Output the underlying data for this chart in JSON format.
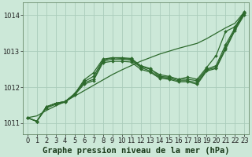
{
  "background_color": "#cce8d8",
  "grid_color": "#aaccbb",
  "line_color": "#2d6a2d",
  "marker_color": "#2d6a2d",
  "title": "Graphe pression niveau de la mer (hPa)",
  "title_fontsize": 7.5,
  "tick_fontsize": 6,
  "ylim": [
    1010.7,
    1014.35
  ],
  "xlim": [
    -0.5,
    23.5
  ],
  "yticks": [
    1011,
    1012,
    1013,
    1014
  ],
  "xticks": [
    0,
    1,
    2,
    3,
    4,
    5,
    6,
    7,
    8,
    9,
    10,
    11,
    12,
    13,
    14,
    15,
    16,
    17,
    18,
    19,
    20,
    21,
    22,
    23
  ],
  "series": [
    [
      1011.15,
      1011.05,
      1011.45,
      1011.55,
      1011.6,
      1011.8,
      1012.2,
      1012.4,
      1012.78,
      1012.82,
      1012.82,
      1012.8,
      1012.6,
      1012.52,
      1012.3,
      1012.28,
      1012.22,
      1012.28,
      1012.22,
      1012.55,
      1012.88,
      1013.55,
      1013.68,
      1014.1
    ],
    [
      1011.15,
      1011.05,
      1011.45,
      1011.55,
      1011.6,
      1011.82,
      1012.15,
      1012.3,
      1012.75,
      1012.82,
      1012.8,
      1012.78,
      1012.58,
      1012.5,
      1012.35,
      1012.3,
      1012.22,
      1012.22,
      1012.18,
      1012.5,
      1012.6,
      1013.18,
      1013.65,
      1014.08
    ],
    [
      1011.15,
      1011.05,
      1011.45,
      1011.55,
      1011.6,
      1011.8,
      1012.12,
      1012.22,
      1012.72,
      1012.78,
      1012.78,
      1012.75,
      1012.55,
      1012.45,
      1012.28,
      1012.25,
      1012.18,
      1012.18,
      1012.12,
      1012.48,
      1012.55,
      1013.1,
      1013.62,
      1014.05
    ],
    [
      1011.15,
      1011.05,
      1011.42,
      1011.52,
      1011.58,
      1011.78,
      1012.08,
      1012.18,
      1012.68,
      1012.72,
      1012.72,
      1012.7,
      1012.5,
      1012.42,
      1012.25,
      1012.22,
      1012.15,
      1012.15,
      1012.08,
      1012.45,
      1012.52,
      1013.05,
      1013.58,
      1014.02
    ]
  ],
  "series_straight": [
    1011.15,
    1011.2,
    1011.35,
    1011.48,
    1011.6,
    1011.75,
    1011.9,
    1012.05,
    1012.2,
    1012.35,
    1012.48,
    1012.6,
    1012.72,
    1012.82,
    1012.92,
    1013.0,
    1013.08,
    1013.15,
    1013.22,
    1013.35,
    1013.5,
    1013.65,
    1013.78,
    1014.1
  ]
}
